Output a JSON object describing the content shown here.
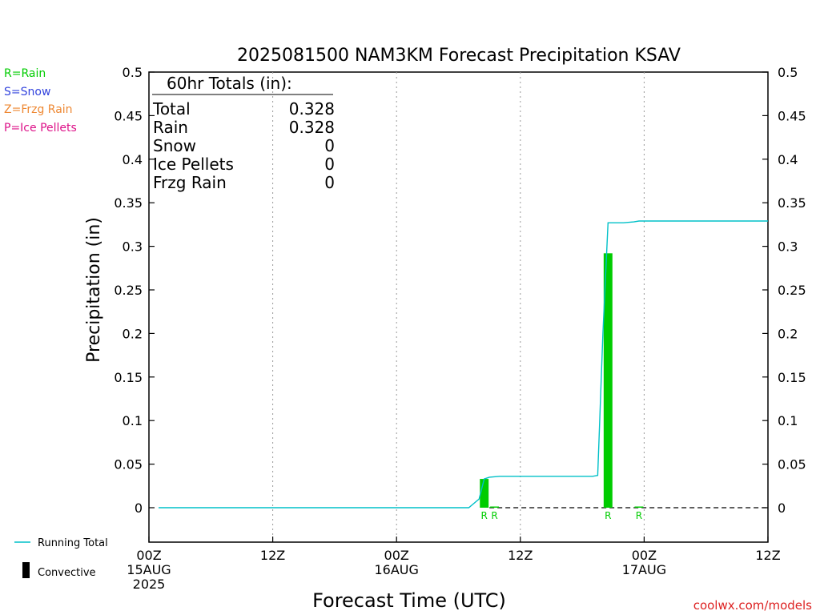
{
  "colors": {
    "rain": "#00cc00",
    "snow": "#3344dd",
    "frzg": "#ee8833",
    "ice": "#dd1188",
    "running_total": "#00c0c8",
    "convective": "#000000",
    "grid": "#999999",
    "credit": "#dd2222"
  },
  "legend": {
    "rain": "R=Rain",
    "snow": "S=Snow",
    "frzg": "Z=Frzg Rain",
    "ice": "P=Ice Pellets",
    "running_total": "Running Total",
    "convective": "Convective"
  },
  "totals": {
    "header": "60hr Totals (in):",
    "rows": [
      {
        "label": "Total",
        "value": "0.328"
      },
      {
        "label": "Rain",
        "value": "0.328"
      },
      {
        "label": "Snow",
        "value": "0"
      },
      {
        "label": "Ice Pellets",
        "value": "0"
      },
      {
        "label": "Frzg Rain",
        "value": "0"
      }
    ]
  },
  "credit": "coolwx.com/models",
  "chart_data": {
    "type": "bar",
    "title": "2025081500 NAM3KM Forecast Precipitation KSAV",
    "xlabel": "Forecast Time (UTC)",
    "ylabel": "Precipitation (in)",
    "ylim": [
      -0.04,
      0.5
    ],
    "xlim_hours": [
      0,
      60
    ],
    "yticks": [
      0,
      0.05,
      0.1,
      0.15,
      0.2,
      0.25,
      0.3,
      0.35,
      0.4,
      0.45,
      0.5
    ],
    "ytick_labels": [
      "0",
      "0.05",
      "0.1",
      "0.15",
      "0.2",
      "0.25",
      "0.3",
      "0.35",
      "0.4",
      "0.45",
      "0.5"
    ],
    "xticks": [
      {
        "hour": 0,
        "lines": [
          "00Z",
          "15AUG",
          "2025"
        ]
      },
      {
        "hour": 12,
        "lines": [
          "12Z"
        ]
      },
      {
        "hour": 24,
        "lines": [
          "00Z",
          "16AUG"
        ]
      },
      {
        "hour": 36,
        "lines": [
          "12Z"
        ]
      },
      {
        "hour": 48,
        "lines": [
          "00Z",
          "17AUG"
        ]
      },
      {
        "hour": 60,
        "lines": [
          "12Z"
        ]
      }
    ],
    "grid": "vertical dotted",
    "bars": [
      {
        "hour": 32.5,
        "value": 0.033,
        "type": "R"
      },
      {
        "hour": 33.5,
        "value": 0.001,
        "type": "R"
      },
      {
        "hour": 44.5,
        "value": 0.292,
        "type": "R"
      },
      {
        "hour": 47.5,
        "value": 0.001,
        "type": "R"
      }
    ],
    "series": [
      {
        "name": "Running Total",
        "x": [
          0,
          31,
          32,
          32.5,
          33,
          34,
          35,
          36,
          37,
          38,
          39,
          40,
          41,
          42,
          43,
          43.5,
          44,
          44.5,
          45,
          46,
          47,
          47.5,
          48,
          50,
          52,
          54,
          56,
          58,
          60
        ],
        "y": [
          0,
          0,
          0.01,
          0.033,
          0.035,
          0.036,
          0.036,
          0.036,
          0.036,
          0.036,
          0.036,
          0.036,
          0.036,
          0.036,
          0.036,
          0.037,
          0.2,
          0.327,
          0.327,
          0.327,
          0.328,
          0.329,
          0.329,
          0.329,
          0.329,
          0.329,
          0.329,
          0.329,
          0.329
        ]
      }
    ]
  }
}
